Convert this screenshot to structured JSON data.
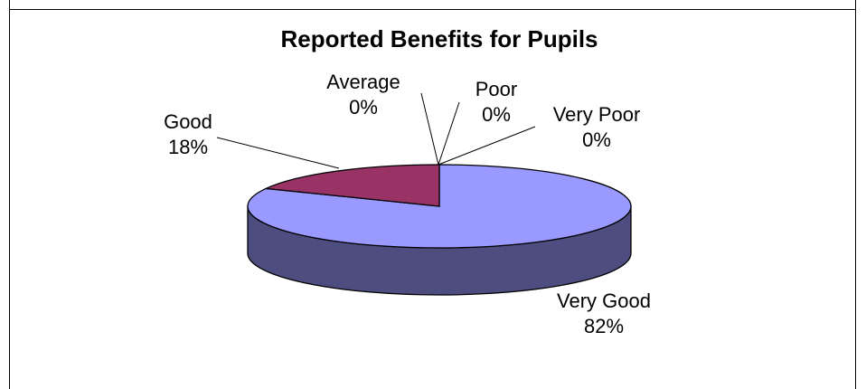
{
  "chart_data": {
    "type": "pie",
    "title": "Reported Benefits for Pupils",
    "three_d": true,
    "slices": [
      {
        "label": "Very Good",
        "value": 82,
        "pct_text": "82%",
        "color": "#9999ff",
        "side_color": "#4d4d80"
      },
      {
        "label": "Good",
        "value": 18,
        "pct_text": "18%",
        "color": "#993366",
        "side_color": "#4d1a33"
      },
      {
        "label": "Average",
        "value": 0,
        "pct_text": "0%",
        "color": "#ffffcc",
        "side_color": "#808066"
      },
      {
        "label": "Poor",
        "value": 0,
        "pct_text": "0%",
        "color": "#ccffff",
        "side_color": "#668080"
      },
      {
        "label": "Very Poor",
        "value": 0,
        "pct_text": "0%",
        "color": "#660066",
        "side_color": "#330033"
      }
    ],
    "legend": "none"
  }
}
